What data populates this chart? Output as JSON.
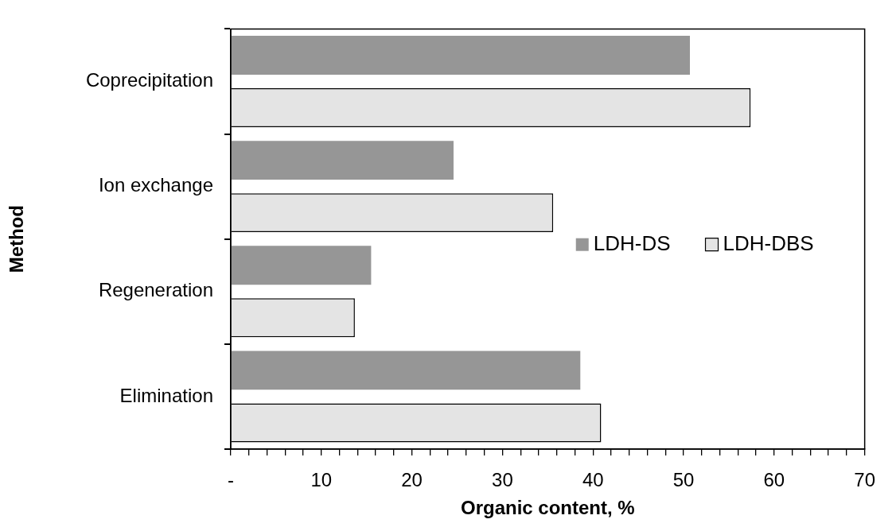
{
  "chart_data": {
    "type": "bar",
    "orientation": "horizontal",
    "xlabel": "Organic content, %",
    "ylabel": "Method",
    "categories": [
      "Coprecipitation",
      "Ion exchange",
      "Regeneration",
      "Elimination"
    ],
    "series": [
      {
        "name": "LDH-DS",
        "color": "#969696",
        "values": [
          50.7,
          24.6,
          15.5,
          38.6
        ]
      },
      {
        "name": "LDH-DBS",
        "color": "#e4e4e4",
        "values": [
          57.4,
          35.6,
          13.7,
          40.9
        ]
      }
    ],
    "xlim": [
      0,
      70
    ],
    "xticks": [
      {
        "value": 0,
        "label": "-"
      },
      {
        "value": 2,
        "label": null
      },
      {
        "value": 4,
        "label": null
      },
      {
        "value": 6,
        "label": null
      },
      {
        "value": 8,
        "label": null
      },
      10,
      {
        "value": 12,
        "label": null
      },
      {
        "value": 14,
        "label": null
      },
      {
        "value": 16,
        "label": null
      },
      {
        "value": 18,
        "label": null
      },
      20,
      {
        "value": 22,
        "label": null
      },
      {
        "value": 24,
        "label": null
      },
      {
        "value": 26,
        "label": null
      },
      {
        "value": 28,
        "label": null
      },
      30,
      {
        "value": 32,
        "label": null
      },
      {
        "value": 34,
        "label": null
      },
      {
        "value": 36,
        "label": null
      },
      {
        "value": 38,
        "label": null
      },
      40,
      {
        "value": 42,
        "label": null
      },
      {
        "value": 44,
        "label": null
      },
      {
        "value": 46,
        "label": null
      },
      {
        "value": 48,
        "label": null
      },
      50,
      {
        "value": 52,
        "label": null
      },
      {
        "value": 54,
        "label": null
      },
      {
        "value": 56,
        "label": null
      },
      {
        "value": 58,
        "label": null
      },
      60,
      {
        "value": 62,
        "label": null
      },
      {
        "value": 64,
        "label": null
      },
      {
        "value": 66,
        "label": null
      },
      {
        "value": 68,
        "label": null
      },
      70
    ],
    "grid": false,
    "legend": "right"
  }
}
